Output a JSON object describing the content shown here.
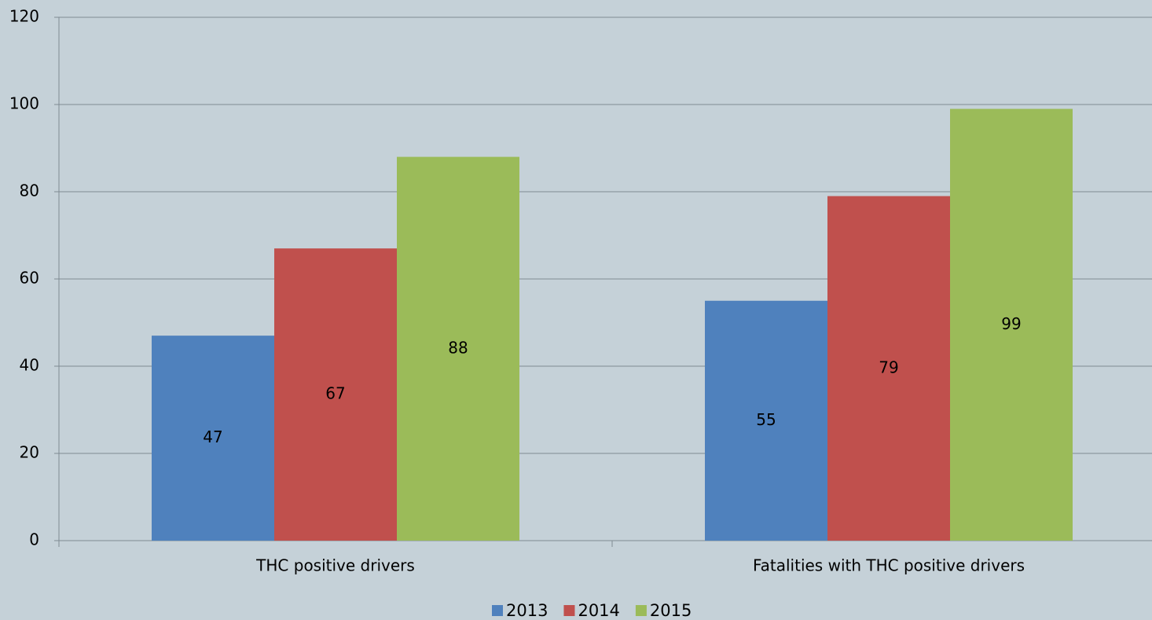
{
  "chart_data": {
    "type": "bar",
    "categories": [
      "THC positive drivers",
      "Fatalities with THC positive drivers"
    ],
    "series": [
      {
        "name": "2013",
        "color": "#4f81bd",
        "values": [
          47,
          55
        ]
      },
      {
        "name": "2014",
        "color": "#c0504d",
        "values": [
          67,
          79
        ]
      },
      {
        "name": "2015",
        "color": "#9bbb59",
        "values": [
          88,
          99
        ]
      }
    ],
    "ylim": [
      0,
      120
    ],
    "yticks": [
      0,
      20,
      40,
      60,
      80,
      100,
      120
    ],
    "grid": true,
    "legend": "bottom"
  }
}
